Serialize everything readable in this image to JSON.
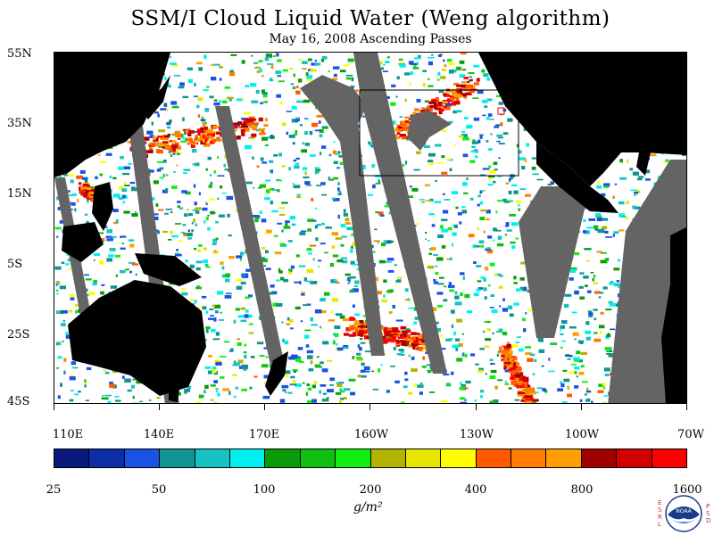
{
  "title": "SSM/I Cloud Liquid Water (Weng algorithm)",
  "subtitle": "May 16, 2008  Ascending Passes",
  "map": {
    "lat_labels": [
      "55N",
      "35N",
      "15N",
      "5S",
      "25S",
      "45S"
    ],
    "lon_labels": [
      "110E",
      "140E",
      "170E",
      "160W",
      "130W",
      "100W",
      "70W"
    ],
    "lat_range": [
      -45,
      55
    ],
    "lon_range": [
      110,
      290
    ],
    "colors": {
      "land": "#000000",
      "no_data_swath_gap": "#646464",
      "ocean_clear": "#ffffff",
      "box_outline": "#000000",
      "marker": "#ff0000"
    }
  },
  "colorbar": {
    "colors": [
      "#0a1a7a",
      "#0d2ea6",
      "#1a52e6",
      "#0f9494",
      "#16c2c2",
      "#00f0f0",
      "#0a9a0a",
      "#10c010",
      "#10f010",
      "#b4b400",
      "#e6e600",
      "#ffff00",
      "#ff5a00",
      "#ff7c00",
      "#ff9e00",
      "#a00000",
      "#d20000",
      "#ff0000"
    ],
    "labels": [
      "25",
      "50",
      "100",
      "200",
      "400",
      "800",
      "1600"
    ],
    "units": "g/m²"
  },
  "logo": {
    "left_text": "ESRL",
    "right_text": "PSD",
    "center_text": "NOAA"
  }
}
